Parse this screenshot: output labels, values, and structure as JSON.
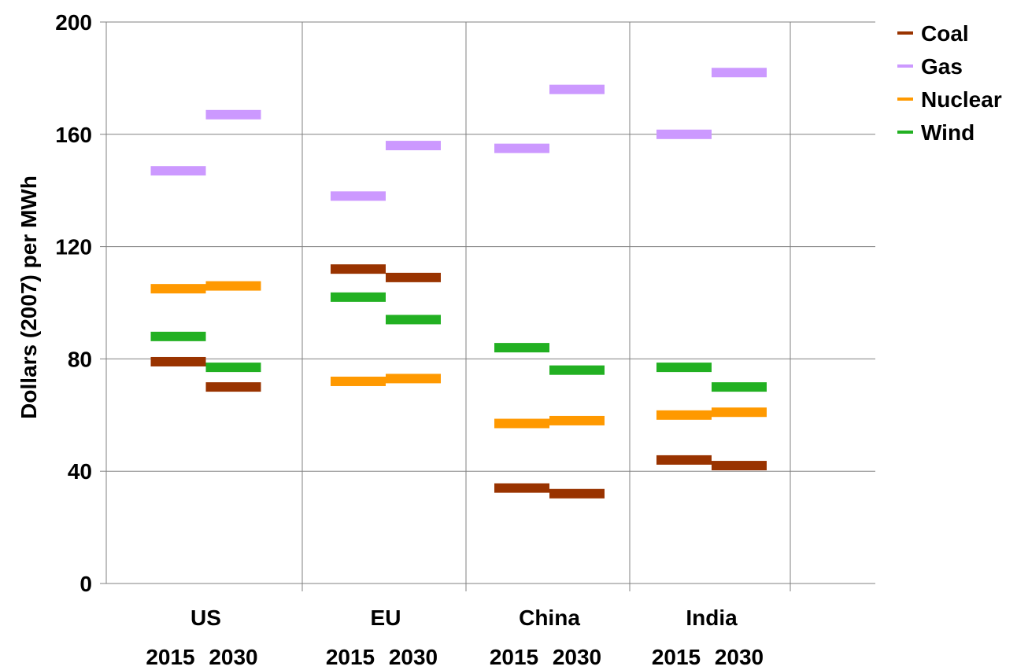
{
  "chart_data": {
    "type": "scatter",
    "title": "",
    "xlabel": "",
    "ylabel": "Dollars (2007) per MWh",
    "ylim": [
      0,
      200
    ],
    "yticks": [
      0,
      40,
      80,
      120,
      160,
      200
    ],
    "grid": true,
    "legend_position": "top-right",
    "categories": [
      "US",
      "EU",
      "China",
      "India"
    ],
    "sub_categories": [
      "2015",
      "2030"
    ],
    "series": [
      {
        "name": "Coal",
        "color": "#993300",
        "values": [
          [
            79,
            70
          ],
          [
            112,
            109
          ],
          [
            34,
            32
          ],
          [
            44,
            42
          ]
        ]
      },
      {
        "name": "Gas",
        "color": "#cc99ff",
        "values": [
          [
            147,
            167
          ],
          [
            138,
            156
          ],
          [
            155,
            176
          ],
          [
            160,
            182
          ]
        ]
      },
      {
        "name": "Nuclear",
        "color": "#ff9900",
        "values": [
          [
            105,
            106
          ],
          [
            72,
            73
          ],
          [
            57,
            58
          ],
          [
            60,
            61
          ]
        ]
      },
      {
        "name": "Wind",
        "color": "#22b022",
        "values": [
          [
            88,
            77
          ],
          [
            102,
            94
          ],
          [
            84,
            76
          ],
          [
            77,
            70
          ]
        ]
      }
    ]
  }
}
